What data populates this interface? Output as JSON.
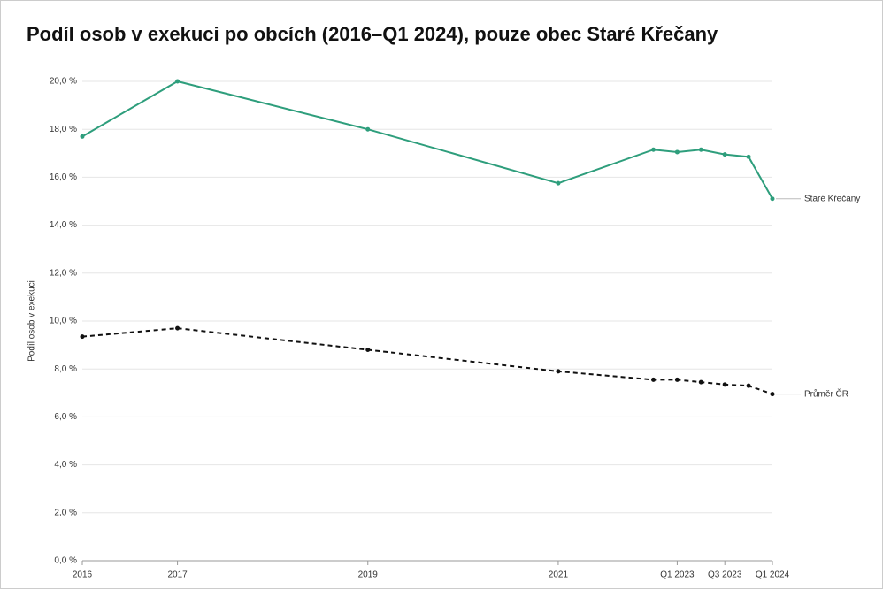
{
  "chart_data": {
    "type": "line",
    "title": "Podíl osob v exekuci po obcích (2016–Q1 2024), pouze obec Staré Křečany",
    "y_label": "Podíl osob v exekuci",
    "x": [
      2016,
      2017,
      2019,
      2021,
      2022,
      2022.25,
      2022.5,
      2022.75,
      2023,
      2023.25
    ],
    "xlim": [
      2016,
      2023.25
    ],
    "xticks": [
      {
        "value": 2016,
        "label": "2016"
      },
      {
        "value": 2017,
        "label": "2017"
      },
      {
        "value": 2019,
        "label": "2019"
      },
      {
        "value": 2021,
        "label": "2021"
      },
      {
        "value": 2022.25,
        "label": "Q1 2023"
      },
      {
        "value": 2022.75,
        "label": "Q3 2023"
      },
      {
        "value": 2023.25,
        "label": "Q1 2024"
      }
    ],
    "ylim": [
      0,
      20
    ],
    "yticks": [
      {
        "value": 0,
        "label": "0,0 %"
      },
      {
        "value": 2,
        "label": "2,0 %"
      },
      {
        "value": 4,
        "label": "4,0 %"
      },
      {
        "value": 6,
        "label": "6,0 %"
      },
      {
        "value": 8,
        "label": "8,0 %"
      },
      {
        "value": 10,
        "label": "10,0 %"
      },
      {
        "value": 12,
        "label": "12,0 %"
      },
      {
        "value": 14,
        "label": "14,0 %"
      },
      {
        "value": 16,
        "label": "16,0 %"
      },
      {
        "value": 18,
        "label": "18,0 %"
      },
      {
        "value": 20,
        "label": "20,0 %"
      }
    ],
    "grid": true,
    "series": [
      {
        "name": "Staré Křečany",
        "color": "#2e9e7c",
        "dash": false,
        "values": [
          17.7,
          20.0,
          18.0,
          15.75,
          17.15,
          17.05,
          17.15,
          16.95,
          16.85,
          15.1
        ]
      },
      {
        "name": "Průměr ČR",
        "color": "#111111",
        "dash": true,
        "values": [
          9.35,
          9.7,
          8.8,
          7.9,
          7.55,
          7.55,
          7.45,
          7.35,
          7.3,
          6.95
        ]
      }
    ]
  }
}
